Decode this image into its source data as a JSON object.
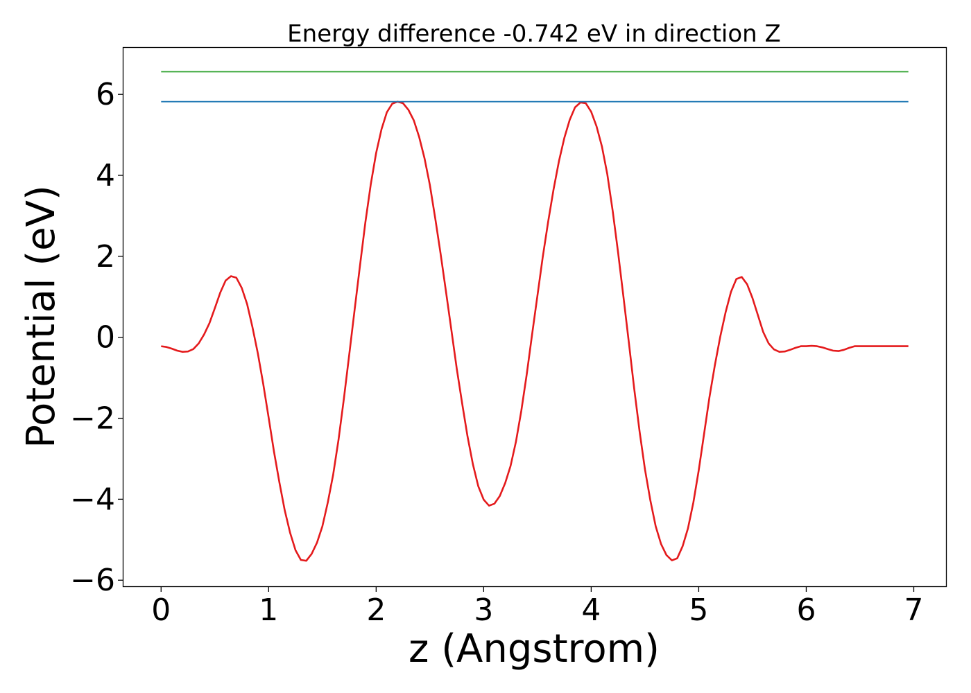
{
  "chart_data": {
    "type": "line",
    "title": "Energy difference -0.742 eV in direction Z",
    "xlabel": "z (Angstrom)",
    "ylabel": "Potential (eV)",
    "xlim": [
      -0.35,
      7.3
    ],
    "ylim": [
      -6.15,
      7.15
    ],
    "x_ticks": [
      0,
      1,
      2,
      3,
      4,
      5,
      6,
      7
    ],
    "x_tick_labels": [
      "0",
      "1",
      "2",
      "3",
      "4",
      "5",
      "6",
      "7"
    ],
    "y_ticks": [
      -6,
      -4,
      -2,
      0,
      2,
      4,
      6
    ],
    "y_tick_labels": [
      "−6",
      "−4",
      "−2",
      "0",
      "2",
      "4",
      "6"
    ],
    "grid": false,
    "legend": "none",
    "series": [
      {
        "color": "#e41a1c",
        "x": [
          0.0,
          0.05,
          0.1,
          0.15,
          0.2,
          0.25,
          0.3,
          0.35,
          0.4,
          0.45,
          0.5,
          0.55,
          0.6,
          0.65,
          0.7,
          0.75,
          0.8,
          0.85,
          0.9,
          0.95,
          1.0,
          1.05,
          1.1,
          1.15,
          1.2,
          1.25,
          1.3,
          1.35,
          1.4,
          1.45,
          1.5,
          1.55,
          1.6,
          1.65,
          1.7,
          1.75,
          1.8,
          1.85,
          1.9,
          1.95,
          2.0,
          2.05,
          2.1,
          2.15,
          2.2,
          2.25,
          2.3,
          2.35,
          2.4,
          2.45,
          2.5,
          2.55,
          2.6,
          2.65,
          2.7,
          2.75,
          2.8,
          2.85,
          2.9,
          2.95,
          3.0,
          3.05,
          3.1,
          3.15,
          3.2,
          3.25,
          3.3,
          3.35,
          3.4,
          3.45,
          3.5,
          3.55,
          3.6,
          3.65,
          3.7,
          3.75,
          3.8,
          3.85,
          3.9,
          3.95,
          4.0,
          4.05,
          4.1,
          4.15,
          4.2,
          4.25,
          4.3,
          4.35,
          4.4,
          4.45,
          4.5,
          4.55,
          4.6,
          4.65,
          4.7,
          4.75,
          4.8,
          4.85,
          4.9,
          4.95,
          5.0,
          5.05,
          5.1,
          5.15,
          5.2,
          5.25,
          5.3,
          5.35,
          5.4,
          5.45,
          5.5,
          5.55,
          5.6,
          5.65,
          5.7,
          5.75,
          5.8,
          5.85,
          5.9,
          5.95,
          6.0,
          6.05,
          6.1,
          6.15,
          6.2,
          6.25,
          6.3,
          6.35,
          6.4,
          6.45,
          6.5,
          6.55,
          6.6,
          6.65,
          6.7,
          6.75,
          6.8,
          6.85,
          6.9,
          6.95
        ],
        "y": [
          -0.22,
          -0.24,
          -0.28,
          -0.33,
          -0.36,
          -0.35,
          -0.29,
          -0.15,
          0.07,
          0.35,
          0.72,
          1.1,
          1.4,
          1.51,
          1.47,
          1.22,
          0.82,
          0.25,
          -0.4,
          -1.15,
          -1.98,
          -2.82,
          -3.58,
          -4.27,
          -4.83,
          -5.26,
          -5.5,
          -5.52,
          -5.35,
          -5.07,
          -4.67,
          -4.08,
          -3.4,
          -2.53,
          -1.52,
          -0.42,
          0.68,
          1.78,
          2.84,
          3.78,
          4.55,
          5.14,
          5.56,
          5.77,
          5.82,
          5.78,
          5.62,
          5.36,
          4.95,
          4.42,
          3.76,
          2.93,
          2.06,
          1.12,
          0.18,
          -0.78,
          -1.64,
          -2.45,
          -3.14,
          -3.68,
          -4.01,
          -4.16,
          -4.11,
          -3.92,
          -3.6,
          -3.18,
          -2.58,
          -1.82,
          -0.92,
          0.06,
          1.03,
          1.99,
          2.86,
          3.65,
          4.35,
          4.92,
          5.37,
          5.68,
          5.8,
          5.78,
          5.57,
          5.21,
          4.71,
          4.03,
          3.12,
          2.09,
          1.0,
          -0.13,
          -1.27,
          -2.33,
          -3.26,
          -4.03,
          -4.67,
          -5.11,
          -5.38,
          -5.51,
          -5.46,
          -5.16,
          -4.72,
          -4.08,
          -3.29,
          -2.38,
          -1.48,
          -0.69,
          0.01,
          0.62,
          1.12,
          1.44,
          1.49,
          1.31,
          0.97,
          0.55,
          0.13,
          -0.15,
          -0.3,
          -0.36,
          -0.35,
          -0.31,
          -0.26,
          -0.22,
          -0.22,
          -0.21,
          -0.22,
          -0.25,
          -0.29,
          -0.33,
          -0.34,
          -0.31,
          -0.26,
          -0.22,
          -0.22,
          -0.22,
          -0.22,
          -0.22,
          -0.22,
          -0.22,
          -0.22,
          -0.22,
          -0.22,
          -0.22
        ]
      },
      {
        "color": "#1f77b4",
        "x": [
          0.0,
          6.95
        ],
        "y": [
          5.82,
          5.82
        ]
      },
      {
        "color": "#2ca02c",
        "x": [
          0.0,
          6.95
        ],
        "y": [
          6.56,
          6.56
        ]
      }
    ]
  }
}
